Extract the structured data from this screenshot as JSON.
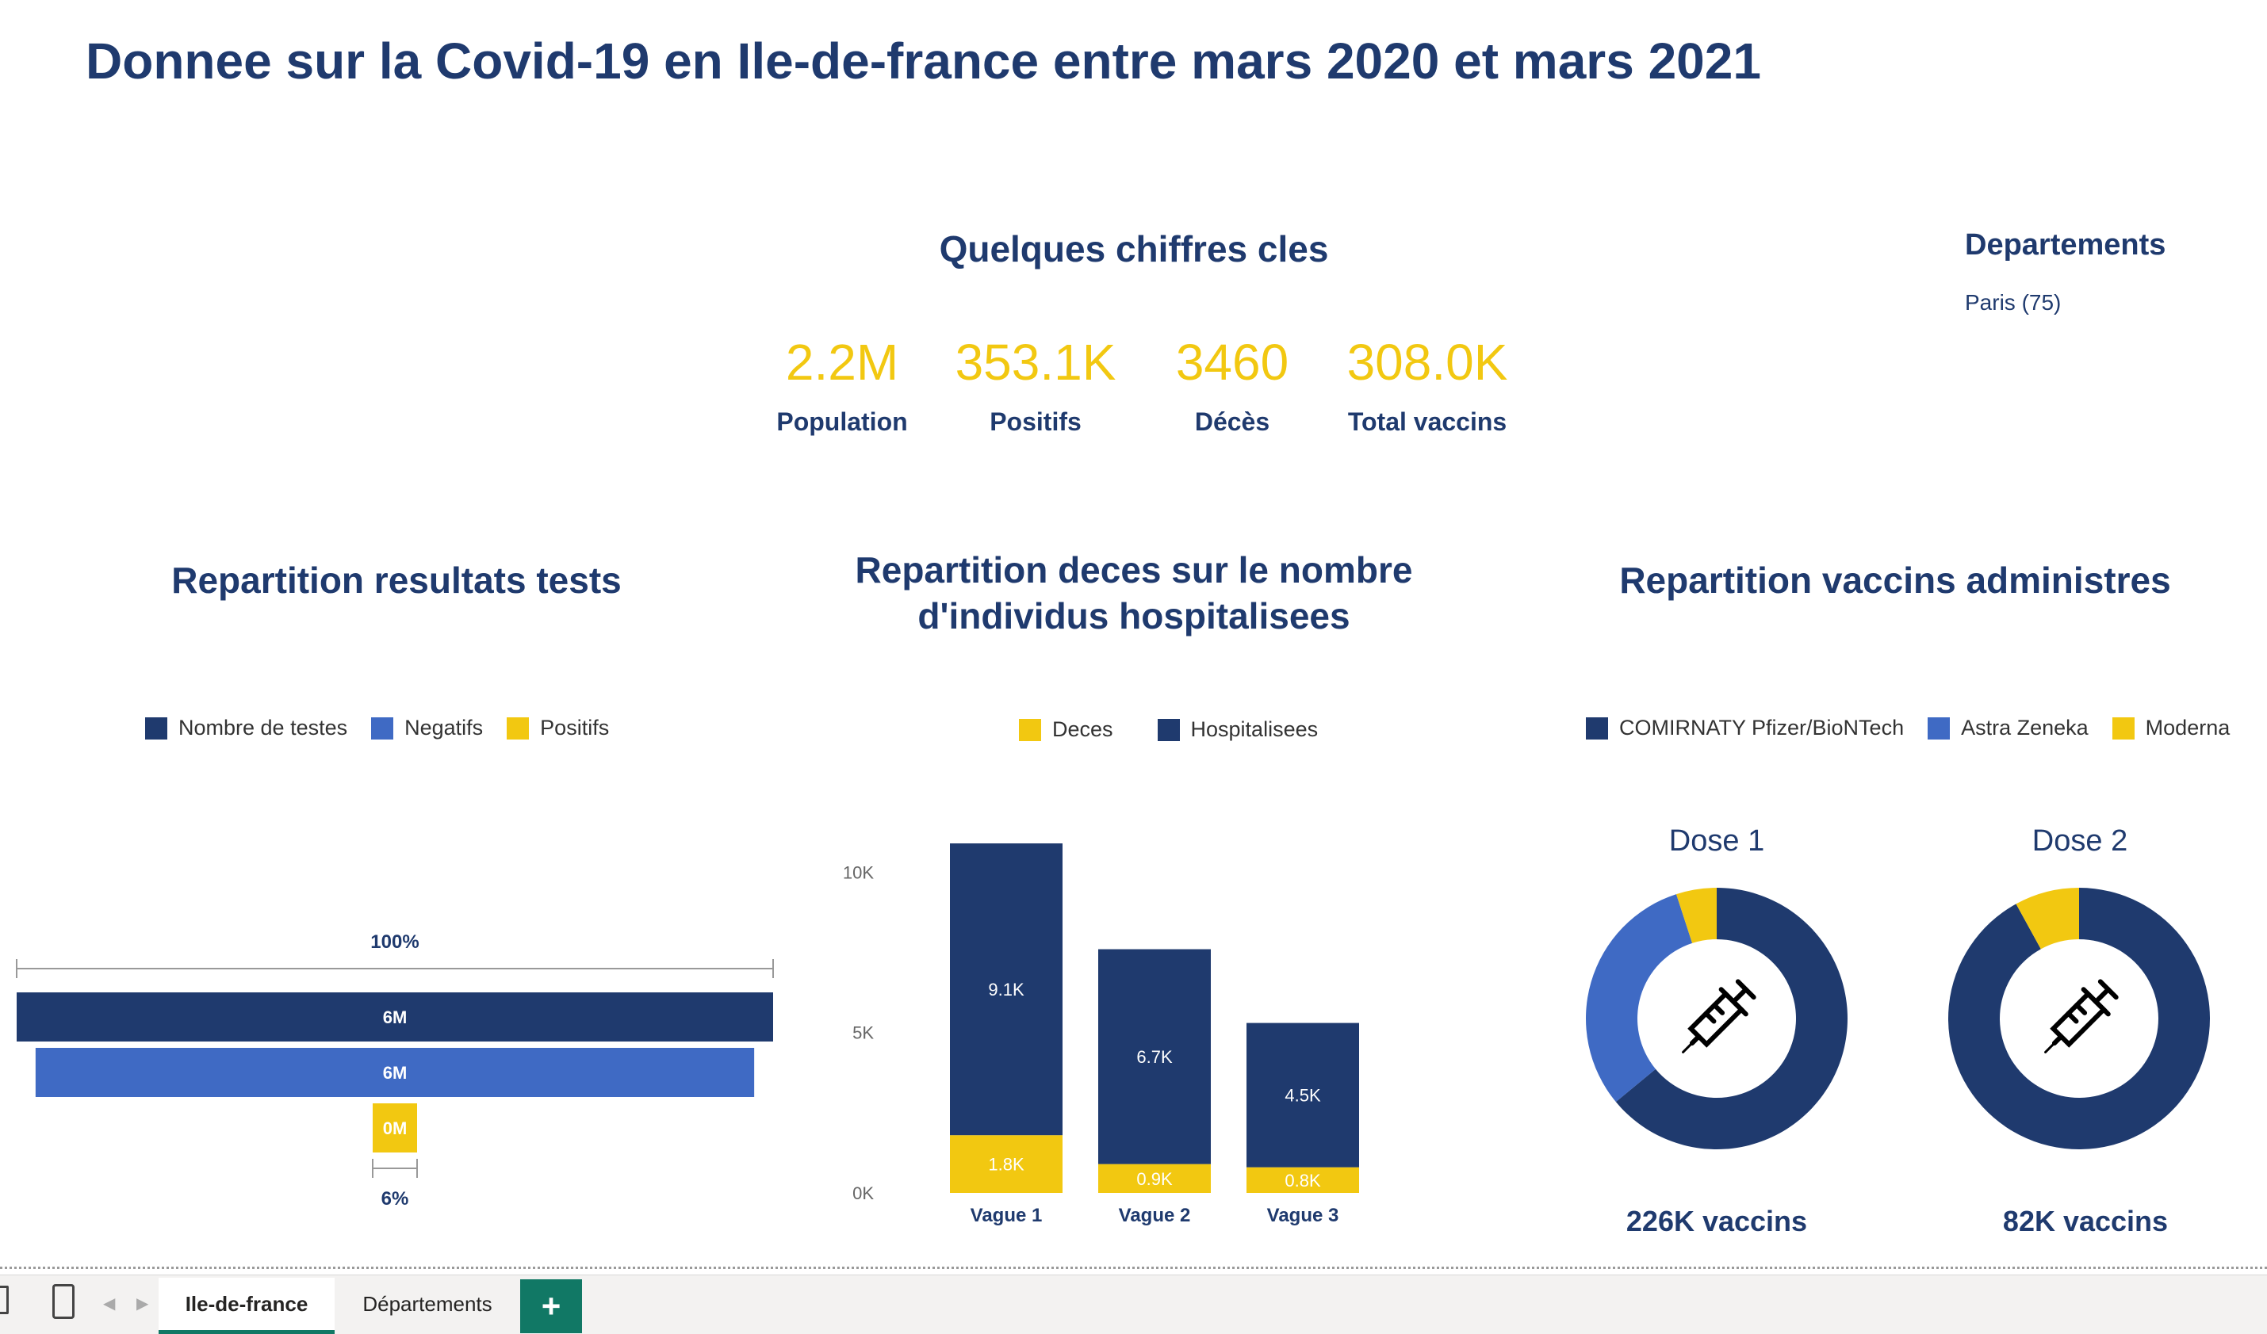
{
  "page_title": "Donnee sur la Covid-19 en Ile-de-france entre mars 2020 et mars 2021",
  "kpi_section": {
    "title": "Quelques chiffres cles",
    "cards": [
      {
        "value": "2.2M",
        "label": "Population"
      },
      {
        "value": "353.1K",
        "label": "Positifs"
      },
      {
        "value": "3460",
        "label": "Décès"
      },
      {
        "value": "308.0K",
        "label": "Total vaccins"
      }
    ]
  },
  "slicer": {
    "title": "Departements",
    "selected": "Paris (75)"
  },
  "colors": {
    "navy": "#1f3a6e",
    "blue": "#3f6ac4",
    "yellow": "#f2c811"
  },
  "tests_chart": {
    "title": "Repartition resultats tests",
    "legend": [
      "Nombre de testes",
      "Negatifs",
      "Positifs"
    ],
    "top_pct": "100%",
    "bottom_pct": "6%"
  },
  "deces_chart": {
    "title_line1": "Repartition deces sur le nombre",
    "title_line2": "d'individus hospitalisees",
    "legend": [
      "Deces",
      "Hospitalisees"
    ],
    "y_ticks": [
      "10K",
      "5K",
      "0K"
    ]
  },
  "vaccins_chart": {
    "title": "Repartition vaccins administres",
    "legend": [
      "COMIRNATY Pfizer/BioNTech",
      "Astra Zeneka",
      "Moderna"
    ],
    "dose1_label": "Dose 1",
    "dose2_label": "Dose 2",
    "dose1_total": "226K vaccins",
    "dose2_total": "82K vaccins"
  },
  "tabs": {
    "tab1": "Ile-de-france",
    "tab2": "Départements",
    "add": "+"
  },
  "chart_data": [
    {
      "type": "bar",
      "title": "Repartition resultats tests",
      "categories": [
        "Nombre de testes",
        "Negatifs",
        "Positifs"
      ],
      "values": [
        6.0,
        5.7,
        0.35
      ],
      "unit": "M",
      "data_labels": [
        "6M",
        "6M",
        "0M"
      ],
      "funnel": true
    },
    {
      "type": "bar",
      "stacked": true,
      "title": "Repartition deces sur le nombre d'individus hospitalisees",
      "categories": [
        "Vague 1",
        "Vague 2",
        "Vague 3"
      ],
      "series": [
        {
          "name": "Deces",
          "values": [
            1800,
            900,
            800
          ],
          "labels": [
            "1.8K",
            "0.9K",
            "0.8K"
          ]
        },
        {
          "name": "Hospitalisees",
          "values": [
            9100,
            6700,
            4500
          ],
          "labels": [
            "9.1K",
            "6.7K",
            "4.5K"
          ]
        }
      ],
      "ylim": [
        0,
        11000
      ],
      "y_ticks": [
        0,
        5000,
        10000
      ]
    },
    {
      "type": "pie",
      "title": "Dose 1",
      "donut": true,
      "slices": [
        {
          "name": "COMIRNATY Pfizer/BioNTech",
          "value": 0.64
        },
        {
          "name": "Astra Zeneka",
          "value": 0.31
        },
        {
          "name": "Moderna",
          "value": 0.05
        }
      ]
    },
    {
      "type": "pie",
      "title": "Dose 2",
      "donut": true,
      "slices": [
        {
          "name": "COMIRNATY Pfizer/BioNTech",
          "value": 0.92
        },
        {
          "name": "Astra Zeneka",
          "value": 0.0
        },
        {
          "name": "Moderna",
          "value": 0.08
        }
      ]
    }
  ]
}
